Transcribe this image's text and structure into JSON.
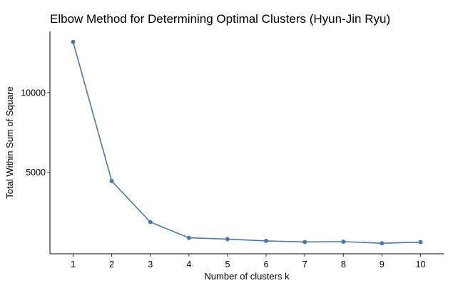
{
  "chart_data": {
    "type": "line",
    "title": "Elbow Method for Determining Optimal Clusters (Hyun-Jin Ryu)",
    "xlabel": "Number of clusters k",
    "ylabel": "Total Within Sum of Square",
    "x": [
      1,
      2,
      3,
      4,
      5,
      6,
      7,
      8,
      9,
      10
    ],
    "x_tick_labels": [
      "1",
      "2",
      "3",
      "4",
      "5",
      "6",
      "7",
      "8",
      "9",
      "10"
    ],
    "y": [
      13180,
      4450,
      1880,
      890,
      810,
      700,
      630,
      650,
      550,
      620
    ],
    "y_ticks": [
      5000,
      10000
    ],
    "y_tick_labels": [
      "5000",
      "10000"
    ],
    "xlim": [
      0.4,
      10.6
    ],
    "ylim": [
      -110,
      13840
    ],
    "grid": false,
    "legend": "none",
    "series_color": "#4A78AE"
  }
}
